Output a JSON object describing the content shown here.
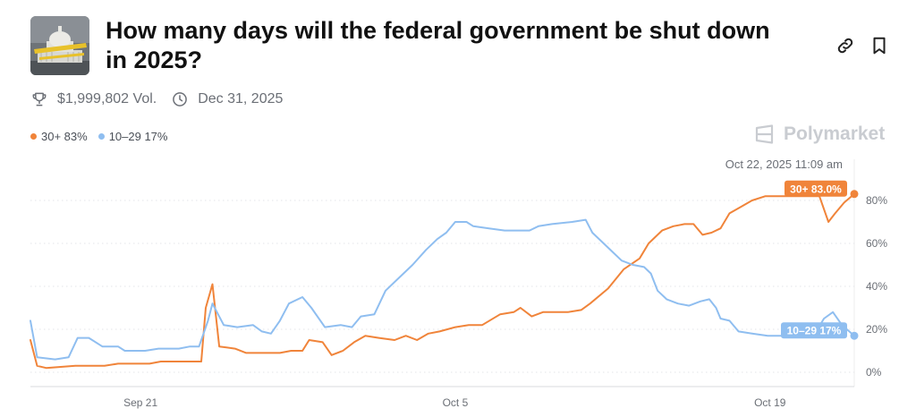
{
  "market": {
    "title": "How many days will the federal government be shut down in 2025?",
    "volume": "$1,999,802 Vol.",
    "end_date": "Dec 31, 2025",
    "brand": "Polymarket"
  },
  "icons": {
    "link": "link-icon",
    "bookmark": "bookmark-icon",
    "volume": "trophy-icon",
    "end_date": "clock-icon",
    "brand": "polymarket-logo-icon"
  },
  "legend": [
    {
      "label": "30+ 83%",
      "color": "#f0843a"
    },
    {
      "label": "10–29 17%",
      "color": "#8fbef0"
    }
  ],
  "chart_data": {
    "type": "line",
    "timestamp": "Oct 22, 2025 11:09 am",
    "x_ticks": [
      {
        "label": "Sep 21",
        "x": 1
      },
      {
        "label": "Oct 5",
        "x": 15
      },
      {
        "label": "Oct 19",
        "x": 29
      }
    ],
    "y_ticks": [
      0,
      20,
      40,
      60,
      80
    ],
    "y_tick_labels": [
      "0%",
      "20%",
      "40%",
      "60%",
      "80%"
    ],
    "ylim": [
      0,
      90
    ],
    "xlim": [
      -3.9,
      32.75
    ],
    "grid": true,
    "series": [
      {
        "name": "30+",
        "color": "#f0843a",
        "end_label": "30+ 83.0%",
        "points": [
          [
            -3.9,
            15
          ],
          [
            -3.6,
            3
          ],
          [
            -3.2,
            2
          ],
          [
            -1.9,
            3
          ],
          [
            -0.6,
            3
          ],
          [
            0,
            4
          ],
          [
            1.4,
            4
          ],
          [
            1.9,
            5
          ],
          [
            3.2,
            5
          ],
          [
            3.7,
            5
          ],
          [
            3.9,
            30
          ],
          [
            4.2,
            41
          ],
          [
            4.5,
            12
          ],
          [
            5.2,
            11
          ],
          [
            5.7,
            9
          ],
          [
            7.2,
            9
          ],
          [
            7.7,
            10
          ],
          [
            8.2,
            10
          ],
          [
            8.5,
            15
          ],
          [
            9.1,
            14
          ],
          [
            9.5,
            8
          ],
          [
            10,
            10
          ],
          [
            10.5,
            14
          ],
          [
            11,
            17
          ],
          [
            11.6,
            16
          ],
          [
            12.3,
            15
          ],
          [
            12.8,
            17
          ],
          [
            13.3,
            15
          ],
          [
            13.8,
            18
          ],
          [
            14.3,
            19
          ],
          [
            15,
            21
          ],
          [
            15.6,
            22
          ],
          [
            16.2,
            22
          ],
          [
            17,
            27
          ],
          [
            17.6,
            28
          ],
          [
            17.9,
            30
          ],
          [
            18.4,
            26
          ],
          [
            18.9,
            28
          ],
          [
            19.4,
            28
          ],
          [
            20,
            28
          ],
          [
            20.6,
            29
          ],
          [
            21,
            32
          ],
          [
            21.8,
            39
          ],
          [
            22.5,
            48
          ],
          [
            23.2,
            53
          ],
          [
            23.6,
            60
          ],
          [
            24.2,
            66
          ],
          [
            24.7,
            68
          ],
          [
            25.2,
            69
          ],
          [
            25.6,
            69
          ],
          [
            26,
            64
          ],
          [
            26.4,
            65
          ],
          [
            26.8,
            67
          ],
          [
            27.2,
            74
          ],
          [
            27.7,
            77
          ],
          [
            28.2,
            80
          ],
          [
            28.8,
            82
          ],
          [
            29.5,
            82
          ],
          [
            30.2,
            82
          ],
          [
            31.2,
            82
          ],
          [
            31.6,
            70
          ],
          [
            31.9,
            74
          ],
          [
            32.3,
            79
          ],
          [
            32.75,
            83
          ]
        ]
      },
      {
        "name": "10–29",
        "color": "#8fbef0",
        "end_label": "10–29 17%",
        "points": [
          [
            -3.9,
            24
          ],
          [
            -3.6,
            7
          ],
          [
            -2.8,
            6
          ],
          [
            -2.2,
            7
          ],
          [
            -1.8,
            16
          ],
          [
            -1.3,
            16
          ],
          [
            -0.7,
            12
          ],
          [
            0,
            12
          ],
          [
            0.3,
            10
          ],
          [
            1.2,
            10
          ],
          [
            1.8,
            11
          ],
          [
            2.7,
            11
          ],
          [
            3.2,
            12
          ],
          [
            3.6,
            12
          ],
          [
            4,
            24
          ],
          [
            4.2,
            32
          ],
          [
            4.7,
            22
          ],
          [
            5.3,
            21
          ],
          [
            6,
            22
          ],
          [
            6.4,
            19
          ],
          [
            6.8,
            18
          ],
          [
            7.2,
            24
          ],
          [
            7.6,
            32
          ],
          [
            8.2,
            35
          ],
          [
            8.6,
            30
          ],
          [
            9.2,
            21
          ],
          [
            9.9,
            22
          ],
          [
            10.4,
            21
          ],
          [
            10.8,
            26
          ],
          [
            11.4,
            27
          ],
          [
            11.9,
            38
          ],
          [
            12.6,
            45
          ],
          [
            13.1,
            50
          ],
          [
            13.7,
            57
          ],
          [
            14.2,
            62
          ],
          [
            14.6,
            65
          ],
          [
            15,
            70
          ],
          [
            15.5,
            70
          ],
          [
            15.8,
            68
          ],
          [
            16.5,
            67
          ],
          [
            17.2,
            66
          ],
          [
            17.9,
            66
          ],
          [
            18.3,
            66
          ],
          [
            18.7,
            68
          ],
          [
            19.3,
            69
          ],
          [
            20.2,
            70
          ],
          [
            20.8,
            71
          ],
          [
            21.1,
            65
          ],
          [
            21.6,
            60
          ],
          [
            22,
            56
          ],
          [
            22.4,
            52
          ],
          [
            22.9,
            50
          ],
          [
            23.4,
            49
          ],
          [
            23.7,
            46
          ],
          [
            24,
            38
          ],
          [
            24.4,
            34
          ],
          [
            24.9,
            32
          ],
          [
            25.4,
            31
          ],
          [
            25.9,
            33
          ],
          [
            26.3,
            34
          ],
          [
            26.6,
            30
          ],
          [
            26.8,
            25
          ],
          [
            27.2,
            24
          ],
          [
            27.6,
            19
          ],
          [
            28.2,
            18
          ],
          [
            28.9,
            17
          ],
          [
            29.5,
            17
          ],
          [
            30.2,
            17
          ],
          [
            31,
            18
          ],
          [
            31.4,
            25
          ],
          [
            31.8,
            28
          ],
          [
            32.2,
            22
          ],
          [
            32.75,
            17
          ]
        ]
      }
    ]
  }
}
